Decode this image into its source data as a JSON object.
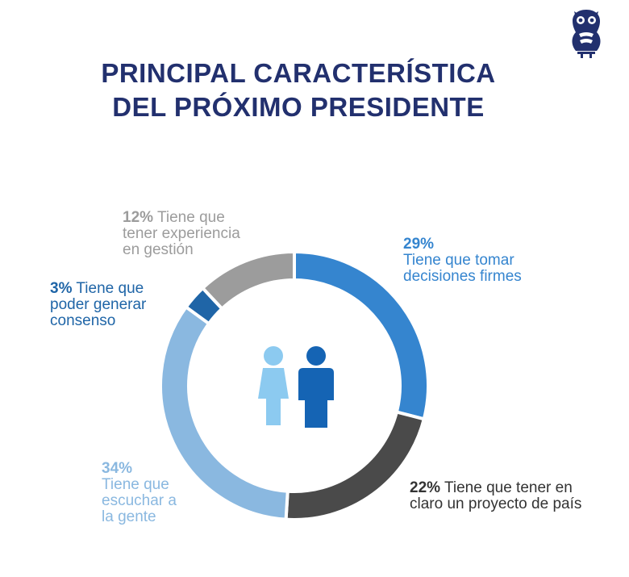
{
  "chart_data": {
    "type": "pie",
    "title": [
      "PRINCIPAL CARACTERÍSTICA",
      "DEL PRÓXIMO PRESIDENTE"
    ],
    "donut": true,
    "slices": [
      {
        "key": "firm",
        "value": 29,
        "pct_label": "29%",
        "lines": [
          "Tiene que tomar",
          "decisiones firmes"
        ],
        "color": "#3585cf"
      },
      {
        "key": "proj",
        "value": 22,
        "pct_label": "22%",
        "lines": [
          "Tiene que tener en",
          "claro un proyecto de país"
        ],
        "color": "#4a4a4a"
      },
      {
        "key": "esc",
        "value": 34,
        "pct_label": "34%",
        "lines": [
          "Tiene que",
          "escuchar a",
          "la gente"
        ],
        "color": "#8ab8e0"
      },
      {
        "key": "cons",
        "value": 3,
        "pct_label": "3%",
        "lines": [
          "Tiene que",
          "poder generar",
          "consenso"
        ],
        "color": "#1f65a7"
      },
      {
        "key": "exp",
        "value": 12,
        "pct_label": "12%",
        "lines": [
          "Tiene que",
          "tener experiencia",
          "en gestión"
        ],
        "color": "#9c9c9c"
      }
    ]
  },
  "colors": {
    "title": "#22306e",
    "woman_icon": "#8ccaf0",
    "man_icon": "#1564b4",
    "logo": "#22306e"
  },
  "icons": [
    "owl-logo-icon",
    "woman-icon",
    "man-icon"
  ]
}
